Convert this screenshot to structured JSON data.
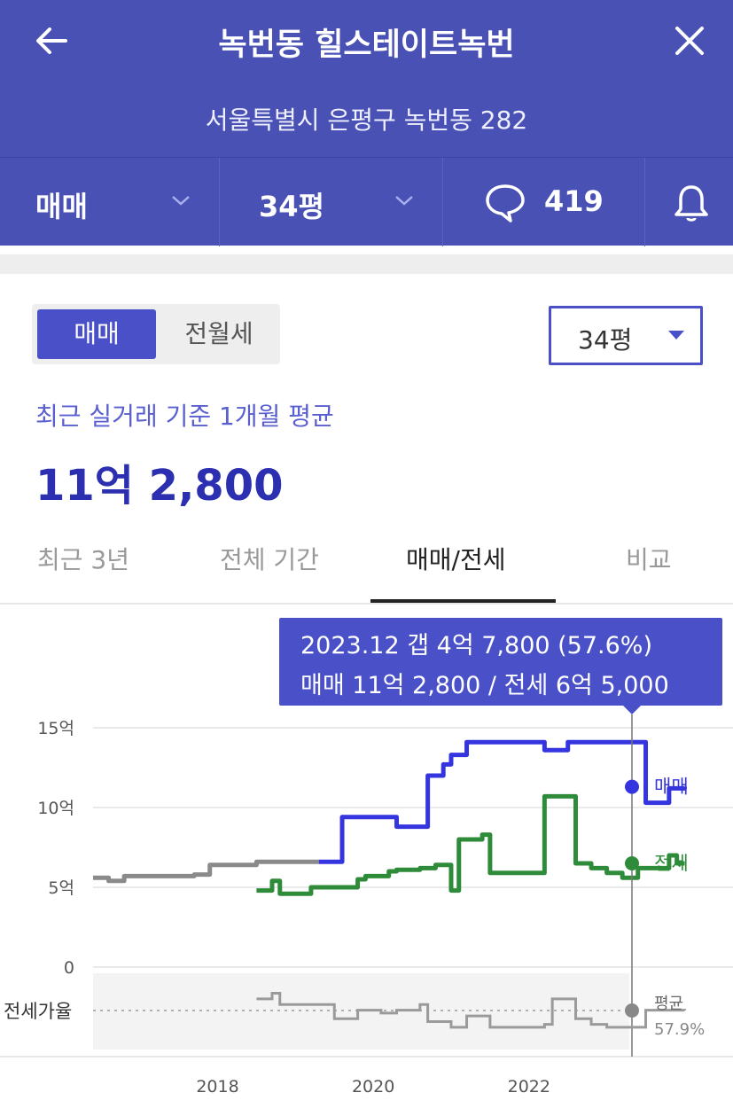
{
  "header": {
    "title": "녹번동 힐스테이트녹번",
    "address": "서울특별시 은평구 녹번동 282",
    "trade_type": "매매",
    "size": "34평",
    "comment_count": "419"
  },
  "filter": {
    "segments": [
      "매매",
      "전월세"
    ],
    "size": "34평"
  },
  "summary": {
    "note": "최근 실거래 기준 1개월 평균",
    "price": "11억 2,800"
  },
  "tabs": [
    "최근 3년",
    "전체 기간",
    "매매/전세",
    "비교"
  ],
  "active_tab": "매매/전세",
  "tooltip": {
    "line1": "2023.12  갭 4억 7,800 (57.6%)",
    "line2": "매매 11억 2,800 / 전세 6억 5,000"
  },
  "colors": {
    "brand": "#4a51b5",
    "sale": "#3535e0",
    "jeonse": "#2e8b3a",
    "history": "#8a8a8a"
  },
  "chart_data": {
    "type": "line",
    "y_ticks": [
      "15억",
      "10억",
      "5억",
      "0"
    ],
    "ylim": [
      0,
      15
    ],
    "x_ticks": [
      "2018",
      "2020",
      "2022"
    ],
    "xlim": [
      2016.4,
      2024.2
    ],
    "series": [
      {
        "name": "",
        "color": "#8a8a8a",
        "x": [
          2016.4,
          2016.6,
          2016.8,
          2017.1,
          2017.3,
          2017.5,
          2017.7,
          2017.9,
          2018.2,
          2018.5,
          2018.9,
          2019.3
        ],
        "y": [
          5.6,
          5.4,
          5.7,
          5.7,
          5.7,
          5.7,
          5.8,
          6.4,
          6.4,
          6.6,
          6.6,
          6.6
        ]
      },
      {
        "name": "매매",
        "color": "#3535e0",
        "x": [
          2019.3,
          2019.5,
          2019.6,
          2019.9,
          2020.2,
          2020.3,
          2020.6,
          2020.7,
          2020.9,
          2021.0,
          2021.2,
          2021.5,
          2021.8,
          2022.0,
          2022.2,
          2022.5,
          2022.8,
          2023.1,
          2023.4,
          2023.5,
          2023.7,
          2023.8,
          2024.0
        ],
        "y": [
          6.6,
          6.6,
          9.4,
          9.4,
          9.4,
          8.8,
          8.8,
          12.0,
          12.7,
          13.3,
          14.1,
          14.1,
          14.1,
          14.1,
          13.6,
          14.1,
          14.1,
          14.1,
          14.1,
          10.3,
          10.3,
          11.2,
          11.3
        ]
      },
      {
        "name": "전세",
        "color": "#2e8b3a",
        "x": [
          2018.5,
          2018.7,
          2018.8,
          2018.9,
          2019.2,
          2019.4,
          2019.6,
          2019.8,
          2019.9,
          2020.2,
          2020.3,
          2020.6,
          2020.8,
          2021.0,
          2021.1,
          2021.4,
          2021.5,
          2021.7,
          2022.0,
          2022.2,
          2022.3,
          2022.5,
          2022.6,
          2022.8,
          2023.0,
          2023.2,
          2023.4,
          2023.6,
          2023.8,
          2023.9,
          2024.0
        ],
        "y": [
          4.8,
          5.4,
          4.6,
          4.6,
          5.0,
          5.0,
          5.0,
          5.5,
          5.7,
          6.0,
          6.1,
          6.2,
          6.4,
          4.8,
          8.0,
          8.3,
          5.9,
          5.9,
          5.9,
          10.7,
          10.7,
          10.7,
          6.5,
          6.2,
          5.9,
          5.6,
          6.2,
          6.2,
          7.0,
          6.5,
          6.5
        ]
      }
    ],
    "end_labels": {
      "sale": "매매",
      "jeonse": "전세"
    },
    "ratio_panel": {
      "label": "전세가율",
      "avg_label": "평균",
      "avg_value": "57.9%",
      "x": [
        2018.5,
        2018.7,
        2018.8,
        2019.2,
        2019.5,
        2019.8,
        2020.1,
        2020.3,
        2020.6,
        2020.7,
        2021.0,
        2021.2,
        2021.5,
        2021.8,
        2022.0,
        2022.2,
        2022.3,
        2022.5,
        2022.6,
        2022.8,
        2023.0,
        2023.3,
        2023.5,
        2023.7,
        2023.9,
        2024.0
      ],
      "y": [
        62,
        64,
        60,
        60,
        55,
        58,
        57,
        58,
        60,
        54,
        52,
        56,
        52,
        52,
        52,
        53,
        62,
        62,
        55,
        53,
        52,
        52,
        58,
        58,
        58,
        57.9
      ]
    }
  }
}
